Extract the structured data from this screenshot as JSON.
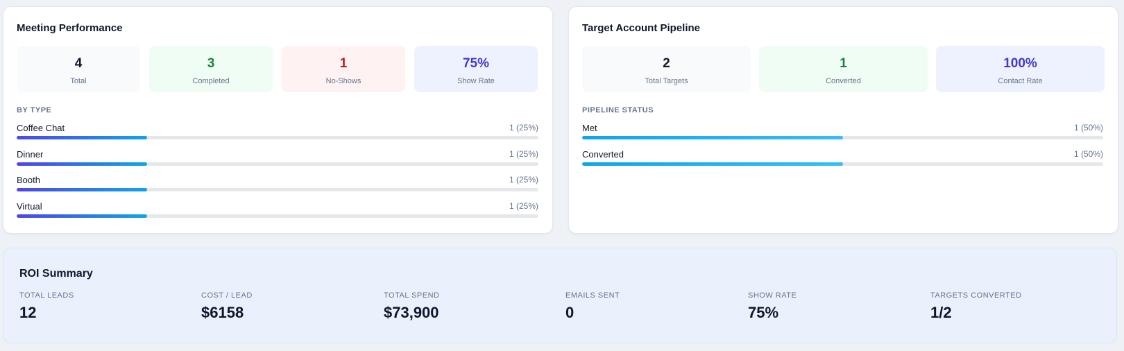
{
  "meeting": {
    "title": "Meeting Performance",
    "stats": [
      {
        "value": "4",
        "label": "Total",
        "bg": "#f8fafc",
        "color": "#0f172a"
      },
      {
        "value": "3",
        "label": "Completed",
        "bg": "#f0fdf4",
        "color": "#15803d"
      },
      {
        "value": "1",
        "label": "No-Shows",
        "bg": "#fef2f2",
        "color": "#b91c1c"
      },
      {
        "value": "75%",
        "label": "Show Rate",
        "bg": "#eef2ff",
        "color": "#4338ca"
      }
    ],
    "section_label": "BY TYPE",
    "bars": [
      {
        "name": "Coffee Chat",
        "count": "1 (25%)",
        "fraction": 0.25
      },
      {
        "name": "Dinner",
        "count": "1 (25%)",
        "fraction": 0.25
      },
      {
        "name": "Booth",
        "count": "1 (25%)",
        "fraction": 0.25
      },
      {
        "name": "Virtual",
        "count": "1 (25%)",
        "fraction": 0.25
      }
    ]
  },
  "pipeline": {
    "title": "Target Account Pipeline",
    "stats": [
      {
        "value": "2",
        "label": "Total Targets",
        "bg": "#f8fafc",
        "color": "#0f172a"
      },
      {
        "value": "1",
        "label": "Converted",
        "bg": "#f0fdf4",
        "color": "#15803d"
      },
      {
        "value": "100%",
        "label": "Contact Rate",
        "bg": "#eef2ff",
        "color": "#4338ca"
      }
    ],
    "section_label": "PIPELINE STATUS",
    "bars": [
      {
        "name": "Met",
        "count": "1 (50%)",
        "fraction": 0.5
      },
      {
        "name": "Converted",
        "count": "1 (50%)",
        "fraction": 0.5
      }
    ]
  },
  "roi": {
    "title": "ROI Summary",
    "items": [
      {
        "label": "TOTAL LEADS",
        "value": "12"
      },
      {
        "label": "COST / LEAD",
        "value": "$6158"
      },
      {
        "label": "TOTAL SPEND",
        "value": "$73,900"
      },
      {
        "label": "EMAILS SENT",
        "value": "0"
      },
      {
        "label": "SHOW RATE",
        "value": "75%"
      },
      {
        "label": "TARGETS CONVERTED",
        "value": "1/2"
      }
    ]
  }
}
